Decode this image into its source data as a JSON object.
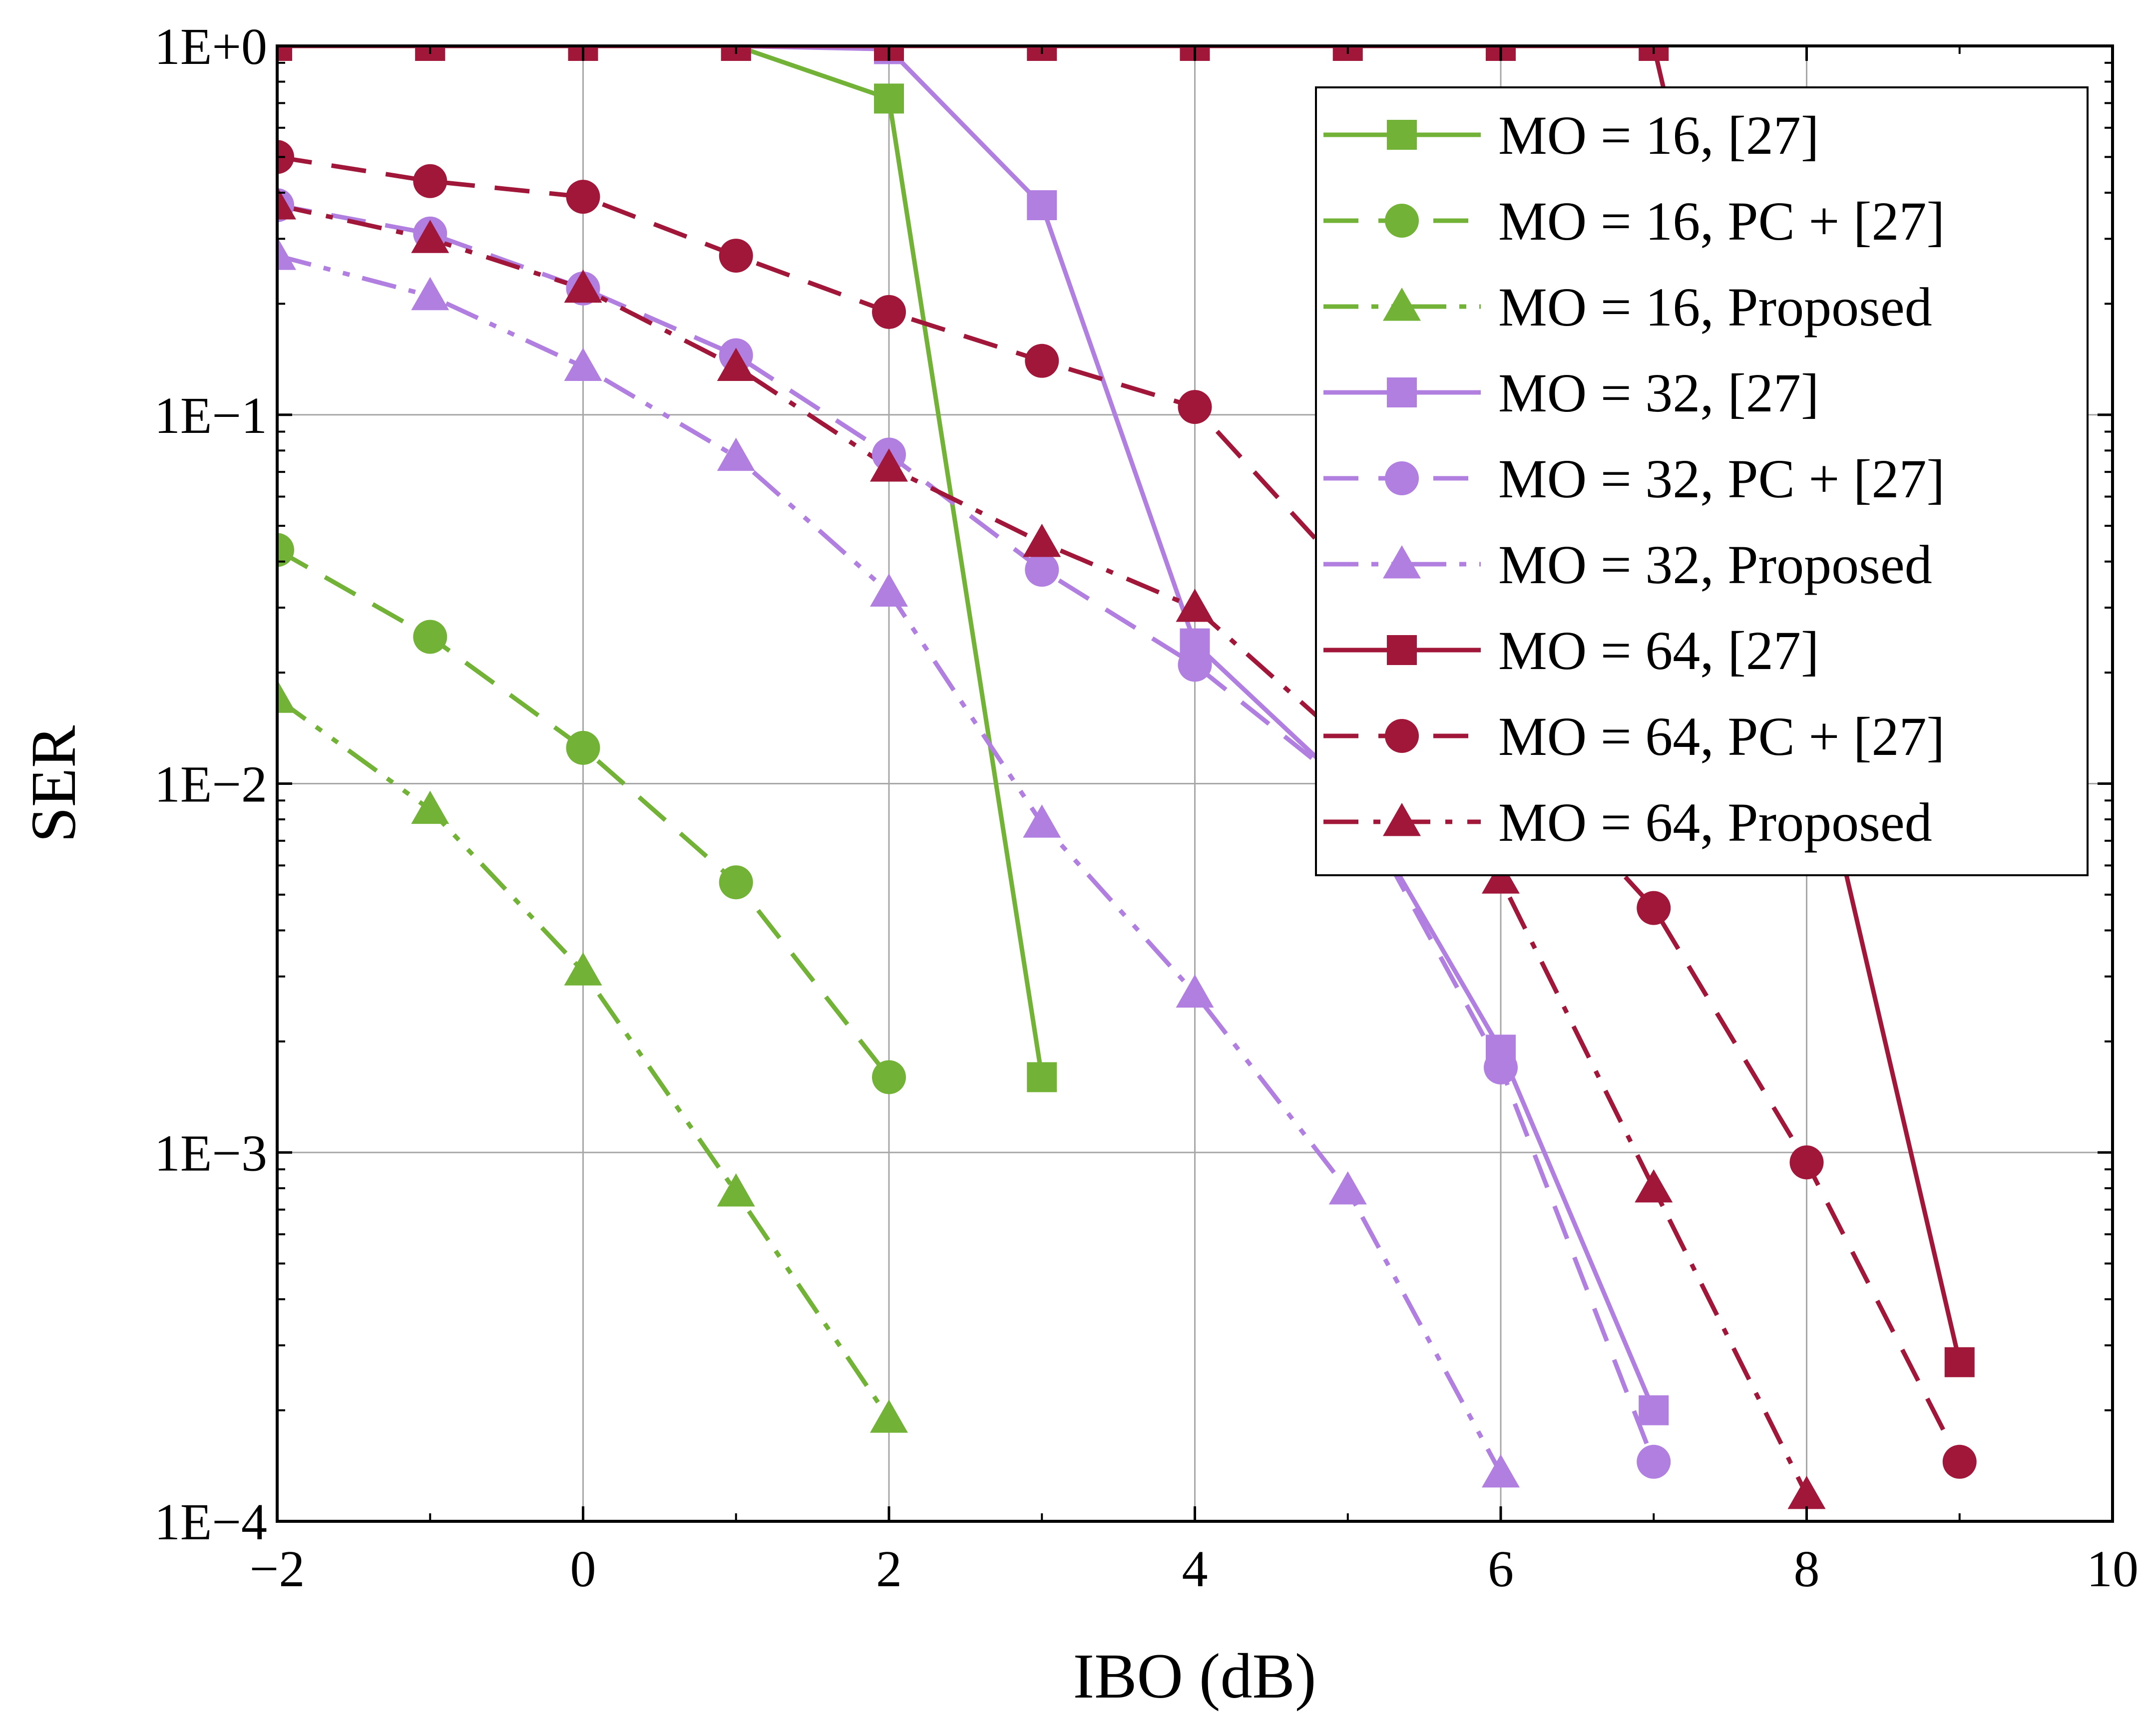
{
  "chart_data": {
    "type": "line",
    "title": "",
    "xlabel": "IBO (dB)",
    "ylabel": "SER",
    "xlim": [
      -2,
      10
    ],
    "ylim": [
      0.0001,
      1
    ],
    "yscale": "log",
    "grid": true,
    "legend_position": "top-right",
    "x_ticks": [
      {
        "value": -2,
        "label": "−2"
      },
      {
        "value": 0,
        "label": "0"
      },
      {
        "value": 2,
        "label": "2"
      },
      {
        "value": 4,
        "label": "4"
      },
      {
        "value": 6,
        "label": "6"
      },
      {
        "value": 8,
        "label": "8"
      },
      {
        "value": 10,
        "label": "10"
      }
    ],
    "y_ticks": [
      {
        "value": 1,
        "label": "1E+0"
      },
      {
        "value": 0.1,
        "label": "1E−1"
      },
      {
        "value": 0.01,
        "label": "1E−2"
      },
      {
        "value": 0.001,
        "label": "1E−3"
      },
      {
        "value": 0.0001,
        "label": "1E−4"
      }
    ],
    "series": [
      {
        "name": "MO = 16,  [27]",
        "color": "#72b236",
        "dash": "solid",
        "marker": "square",
        "x": [
          -2,
          -1,
          0,
          1,
          2,
          3
        ],
        "y": [
          1,
          1,
          1,
          1,
          0.72,
          0.0016
        ]
      },
      {
        "name": "MO = 16,  PC + [27]",
        "color": "#72b236",
        "dash": "dash",
        "marker": "circle",
        "x": [
          -2,
          -1,
          0,
          1,
          2
        ],
        "y": [
          0.043,
          0.025,
          0.0125,
          0.0054,
          0.0016
        ]
      },
      {
        "name": "MO = 16,  Proposed",
        "color": "#72b236",
        "dash": "dashdotdot",
        "marker": "triangle",
        "x": [
          -2,
          -1,
          0,
          1,
          2
        ],
        "y": [
          0.017,
          0.0085,
          0.0031,
          0.00078,
          0.00019
        ]
      },
      {
        "name": "MO = 32,  [27]",
        "color": "#b07fe0",
        "dash": "solid",
        "marker": "square",
        "x": [
          -2,
          -1,
          0,
          1,
          2,
          3,
          4,
          5,
          6,
          7
        ],
        "y": [
          1,
          1,
          1,
          1,
          0.98,
          0.37,
          0.024,
          0.0098,
          0.0019,
          0.0002
        ]
      },
      {
        "name": "MO = 32,  PC + [27]",
        "color": "#b07fe0",
        "dash": "dash",
        "marker": "circle",
        "x": [
          -2,
          -1,
          0,
          1,
          2,
          3,
          4,
          5,
          6,
          7
        ],
        "y": [
          0.37,
          0.31,
          0.22,
          0.145,
          0.078,
          0.038,
          0.021,
          0.0098,
          0.0017,
          0.000145
        ]
      },
      {
        "name": "MO = 32,  Proposed",
        "color": "#b07fe0",
        "dash": "dashdotdot",
        "marker": "triangle",
        "x": [
          -2,
          -1,
          0,
          1,
          2,
          3,
          4,
          5,
          6
        ],
        "y": [
          0.27,
          0.21,
          0.135,
          0.077,
          0.033,
          0.0078,
          0.0027,
          0.00079,
          0.000135
        ]
      },
      {
        "name": "MO = 64,  [27]",
        "color": "#a0173a",
        "dash": "solid",
        "marker": "square",
        "x": [
          -2,
          -1,
          0,
          1,
          2,
          3,
          4,
          5,
          6,
          7,
          9
        ],
        "y": [
          1,
          1,
          1,
          1,
          1,
          1,
          1,
          1,
          1,
          1,
          0.00027
        ]
      },
      {
        "name": "MO = 64,  PC + [27]",
        "color": "#a0173a",
        "dash": "dash",
        "marker": "circle",
        "x": [
          -2,
          -1,
          0,
          1,
          2,
          3,
          4,
          7,
          8,
          9
        ],
        "y": [
          0.5,
          0.43,
          0.39,
          0.27,
          0.19,
          0.14,
          0.105,
          0.0046,
          0.00094,
          0.000145
        ]
      },
      {
        "name": "MO = 64,  Proposed",
        "color": "#a0173a",
        "dash": "dashdot",
        "marker": "triangle",
        "x": [
          -2,
          -1,
          0,
          1,
          2,
          3,
          4,
          6,
          7,
          8
        ],
        "y": [
          0.37,
          0.3,
          0.22,
          0.135,
          0.072,
          0.045,
          0.03,
          0.0055,
          0.0008,
          0.000118
        ]
      }
    ]
  }
}
